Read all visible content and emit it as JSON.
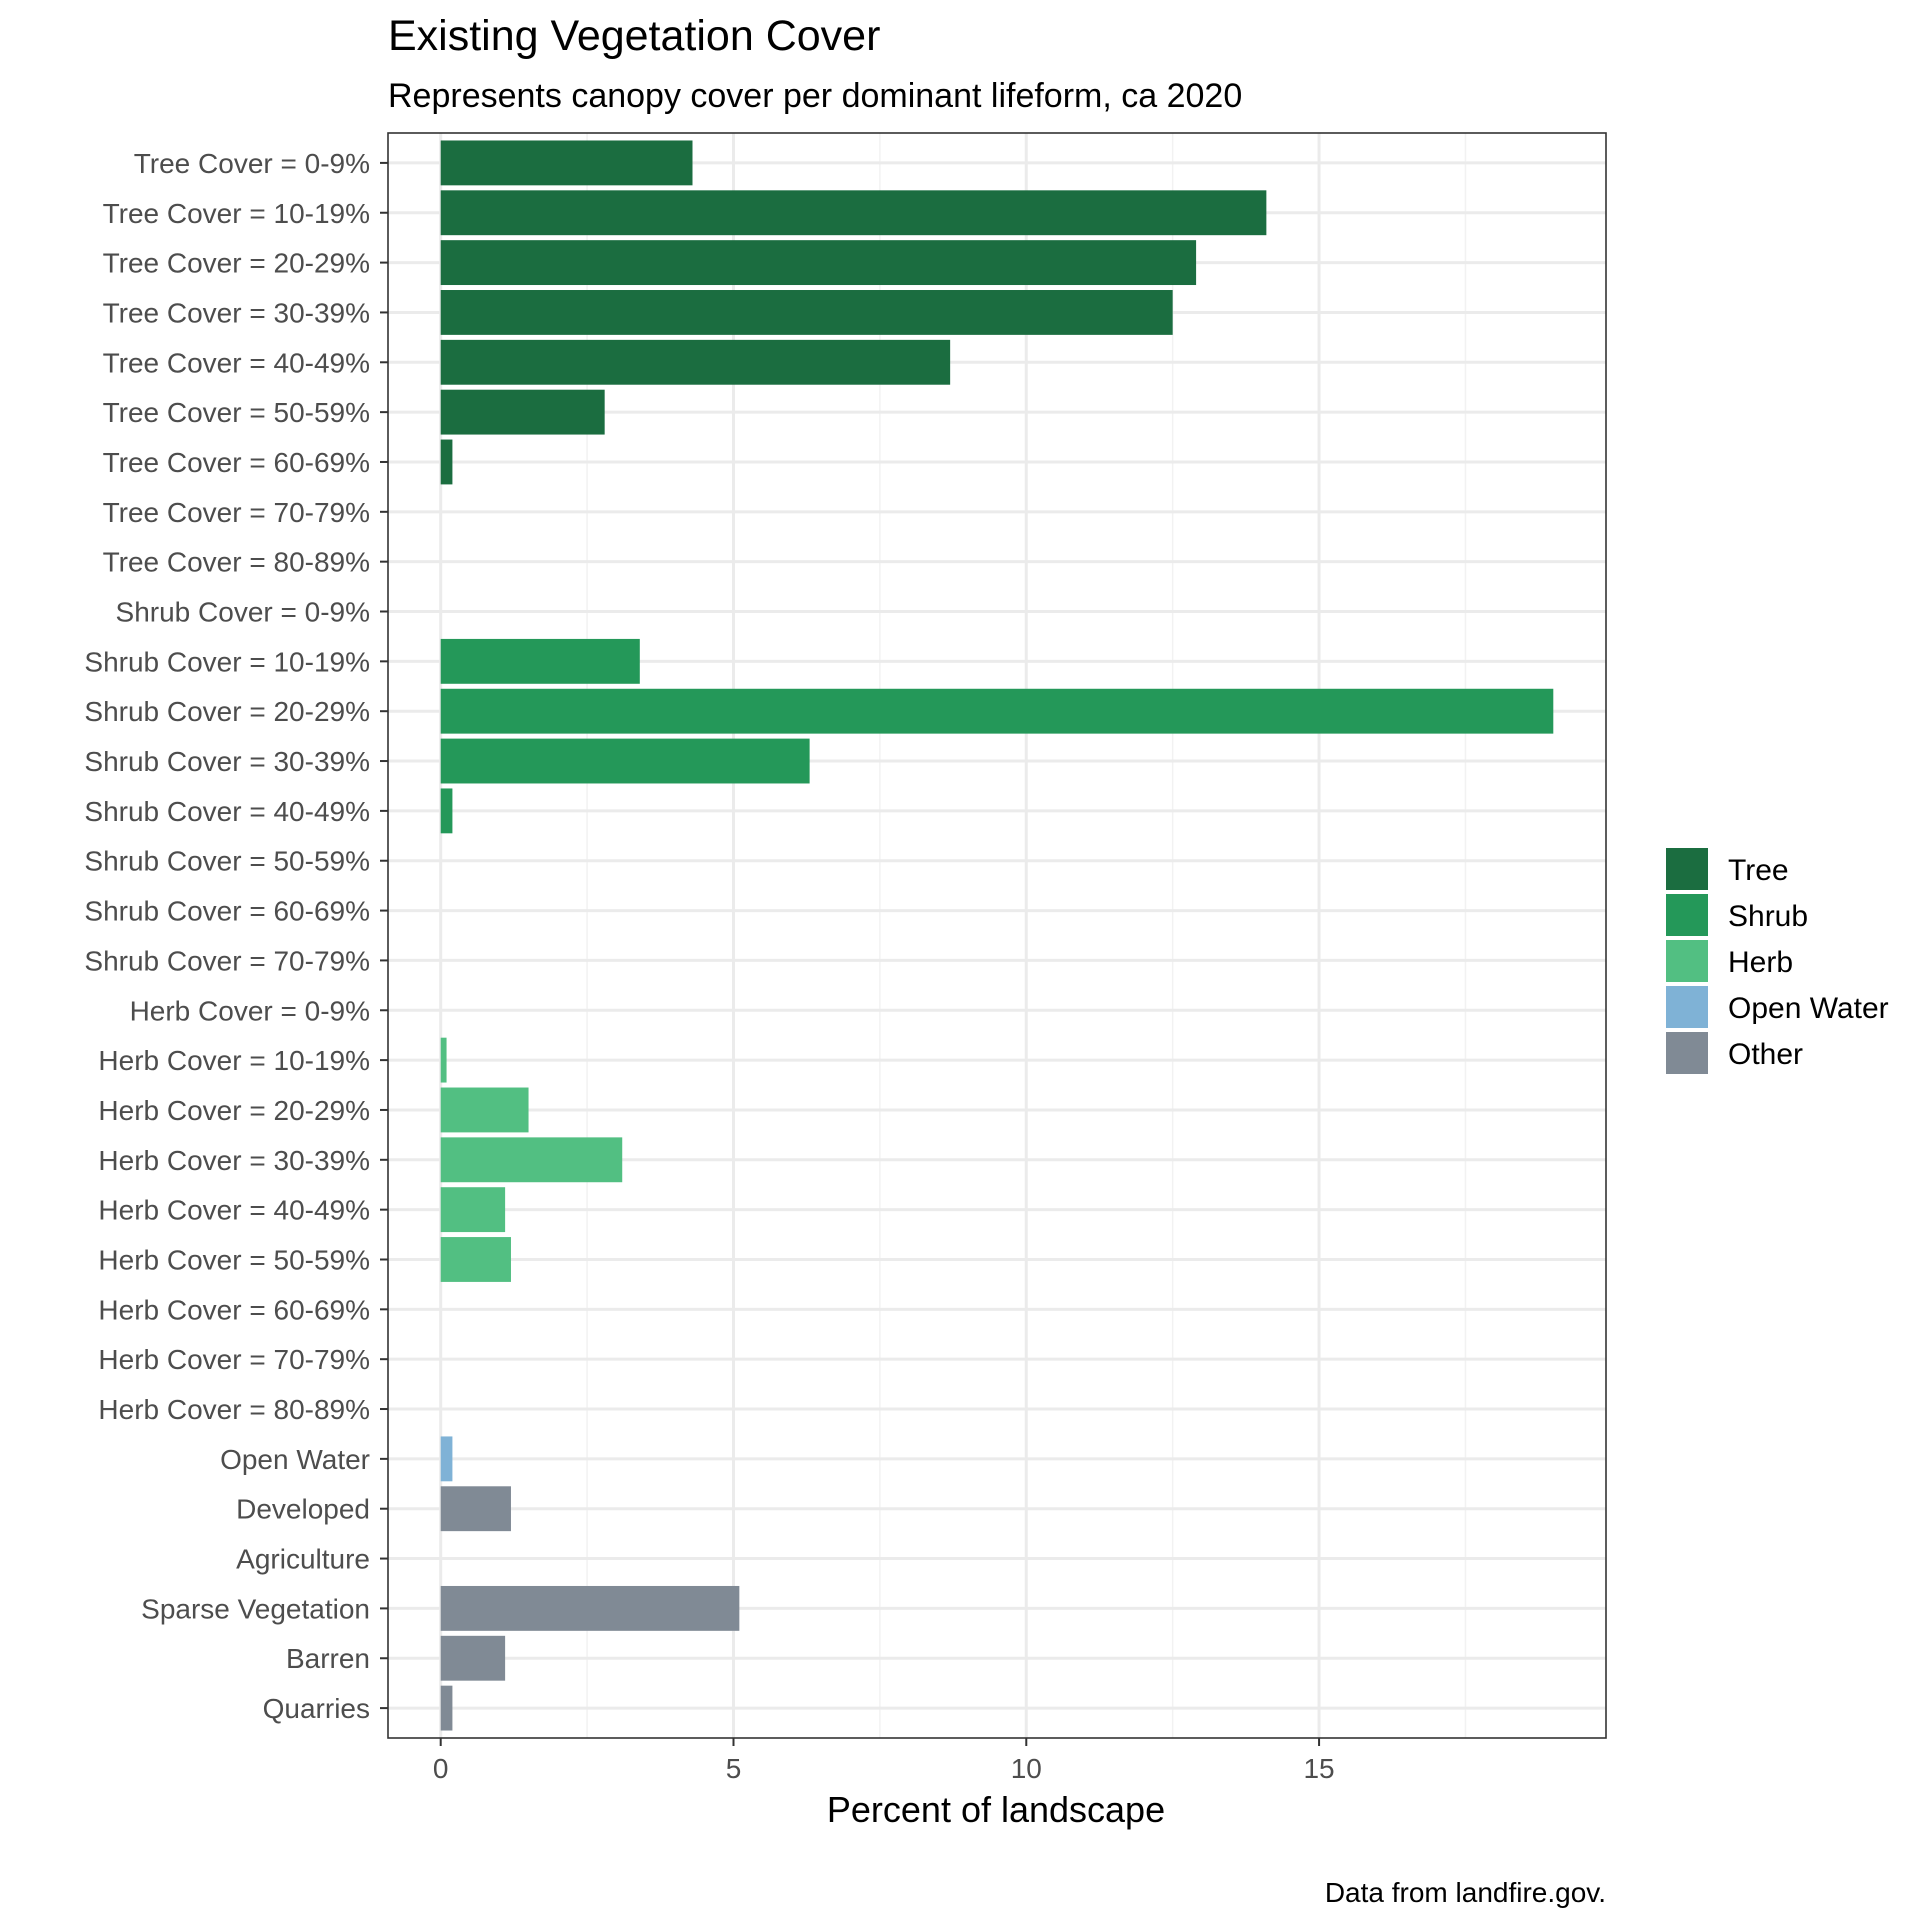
{
  "chart_data": {
    "type": "bar",
    "orientation": "horizontal",
    "title": "Existing Vegetation Cover",
    "subtitle": "Represents canopy cover per dominant lifeform, ca 2020",
    "xlabel": "Percent of landscape",
    "ylabel": "",
    "caption": "Data from landfire.gov.",
    "xlim": [
      -0.9,
      19.9
    ],
    "x_ticks": [
      0,
      5,
      10,
      15
    ],
    "grid": true,
    "legend_position": "right",
    "legend": [
      {
        "name": "Tree",
        "color": "#1b6d40"
      },
      {
        "name": "Shrub",
        "color": "#249859"
      },
      {
        "name": "Herb",
        "color": "#52bf82"
      },
      {
        "name": "Open Water",
        "color": "#7fb2d6"
      },
      {
        "name": "Other",
        "color": "#808a95"
      }
    ],
    "categories": [
      "Tree Cover = 0-9%",
      "Tree Cover = 10-19%",
      "Tree Cover = 20-29%",
      "Tree Cover = 30-39%",
      "Tree Cover = 40-49%",
      "Tree Cover = 50-59%",
      "Tree Cover = 60-69%",
      "Tree Cover = 70-79%",
      "Tree Cover = 80-89%",
      "Shrub Cover = 0-9%",
      "Shrub Cover = 10-19%",
      "Shrub Cover = 20-29%",
      "Shrub Cover = 30-39%",
      "Shrub Cover = 40-49%",
      "Shrub Cover = 50-59%",
      "Shrub Cover = 60-69%",
      "Shrub Cover = 70-79%",
      "Herb Cover = 0-9%",
      "Herb Cover = 10-19%",
      "Herb Cover = 20-29%",
      "Herb Cover = 30-39%",
      "Herb Cover = 40-49%",
      "Herb Cover = 50-59%",
      "Herb Cover = 60-69%",
      "Herb Cover = 70-79%",
      "Herb Cover = 80-89%",
      "Open Water",
      "Developed",
      "Agriculture",
      "Sparse Vegetation",
      "Barren",
      "Quarries"
    ],
    "values": [
      4.3,
      14.1,
      12.9,
      12.5,
      8.7,
      2.8,
      0.2,
      0,
      0,
      0,
      3.4,
      19.0,
      6.3,
      0.2,
      0,
      0,
      0,
      0,
      0.1,
      1.5,
      3.1,
      1.1,
      1.2,
      0,
      0,
      0,
      0.2,
      1.2,
      0,
      5.1,
      1.1,
      0.2
    ],
    "groups": [
      "Tree",
      "Tree",
      "Tree",
      "Tree",
      "Tree",
      "Tree",
      "Tree",
      "Tree",
      "Tree",
      "Shrub",
      "Shrub",
      "Shrub",
      "Shrub",
      "Shrub",
      "Shrub",
      "Shrub",
      "Shrub",
      "Herb",
      "Herb",
      "Herb",
      "Herb",
      "Herb",
      "Herb",
      "Herb",
      "Herb",
      "Herb",
      "Open Water",
      "Other",
      "Other",
      "Other",
      "Other",
      "Other"
    ]
  }
}
